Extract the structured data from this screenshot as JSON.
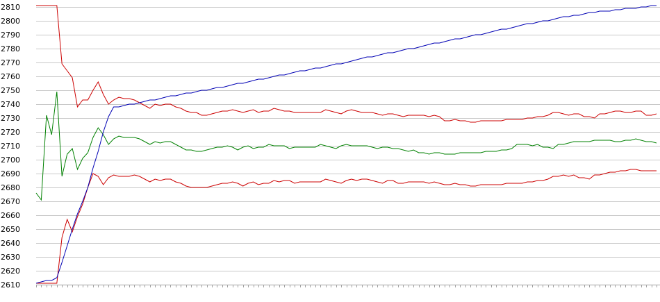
{
  "chart_data": {
    "type": "line",
    "title": "",
    "xlabel": "",
    "ylabel": "",
    "ylim": [
      2610,
      2810
    ],
    "yticks": [
      2610,
      2620,
      2630,
      2640,
      2650,
      2660,
      2670,
      2680,
      2690,
      2700,
      2710,
      2720,
      2730,
      2740,
      2750,
      2760,
      2770,
      2780,
      2790,
      2800,
      2810
    ],
    "grid": true,
    "legend": "none",
    "x_count": 121,
    "series": [
      {
        "color": "#cc0000",
        "values": [
          2811,
          2811,
          2811,
          2811,
          2811,
          2769,
          2764,
          2759,
          2738,
          2743,
          2743,
          2750,
          2756,
          2747,
          2740,
          2743,
          2745,
          2744,
          2744,
          2743,
          2741,
          2739,
          2737,
          2740,
          2739,
          2740,
          2740,
          2738,
          2737,
          2735,
          2734,
          2734,
          2732,
          2732,
          2733,
          2734,
          2735,
          2735,
          2736,
          2735,
          2734,
          2735,
          2736,
          2734,
          2735,
          2735,
          2737,
          2736,
          2735,
          2735,
          2734,
          2734,
          2734,
          2734,
          2734,
          2734,
          2736,
          2735,
          2734,
          2733,
          2735,
          2736,
          2735,
          2734,
          2734,
          2734,
          2733,
          2732,
          2733,
          2733,
          2732,
          2731,
          2732,
          2732,
          2732,
          2732,
          2731,
          2732,
          2731,
          2728,
          2728,
          2729,
          2728,
          2728,
          2727,
          2727,
          2728,
          2728,
          2728,
          2728,
          2728,
          2729,
          2729,
          2729,
          2729,
          2730,
          2730,
          2731,
          2731,
          2732,
          2734,
          2734,
          2733,
          2732,
          2733,
          2733,
          2731,
          2731,
          2730,
          2733,
          2733,
          2734,
          2735,
          2735,
          2734,
          2734,
          2735,
          2735,
          2732,
          2732,
          2733
        ]
      },
      {
        "color": "#008000",
        "values": [
          2676,
          2671,
          2732,
          2718,
          2749,
          2688,
          2704,
          2708,
          2693,
          2701,
          2705,
          2716,
          2723,
          2718,
          2711,
          2715,
          2717,
          2716,
          2716,
          2716,
          2715,
          2713,
          2711,
          2713,
          2712,
          2713,
          2713,
          2711,
          2709,
          2707,
          2707,
          2706,
          2706,
          2707,
          2708,
          2709,
          2709,
          2710,
          2709,
          2707,
          2709,
          2710,
          2708,
          2709,
          2709,
          2711,
          2710,
          2710,
          2710,
          2708,
          2709,
          2709,
          2709,
          2709,
          2709,
          2711,
          2710,
          2709,
          2708,
          2710,
          2711,
          2710,
          2710,
          2710,
          2710,
          2709,
          2708,
          2709,
          2709,
          2708,
          2708,
          2707,
          2706,
          2707,
          2705,
          2705,
          2704,
          2705,
          2705,
          2704,
          2704,
          2704,
          2705,
          2705,
          2705,
          2705,
          2705,
          2706,
          2706,
          2706,
          2707,
          2707,
          2708,
          2711,
          2711,
          2711,
          2710,
          2711,
          2709,
          2709,
          2708,
          2711,
          2711,
          2712,
          2713,
          2713,
          2713,
          2713,
          2714,
          2714,
          2714,
          2714,
          2713,
          2713,
          2714,
          2714,
          2715,
          2714,
          2713,
          2713,
          2712
        ]
      },
      {
        "color": "#cc0000",
        "values": [
          2611,
          2611,
          2611,
          2611,
          2611,
          2644,
          2657,
          2648,
          2659,
          2668,
          2680,
          2690,
          2688,
          2682,
          2687,
          2689,
          2688,
          2688,
          2688,
          2689,
          2688,
          2686,
          2684,
          2686,
          2685,
          2686,
          2686,
          2684,
          2683,
          2681,
          2680,
          2680,
          2680,
          2680,
          2681,
          2682,
          2683,
          2683,
          2684,
          2683,
          2681,
          2683,
          2684,
          2682,
          2683,
          2683,
          2685,
          2684,
          2685,
          2685,
          2683,
          2684,
          2684,
          2684,
          2684,
          2684,
          2686,
          2685,
          2684,
          2683,
          2685,
          2686,
          2685,
          2686,
          2686,
          2685,
          2684,
          2683,
          2685,
          2685,
          2683,
          2683,
          2684,
          2684,
          2684,
          2684,
          2683,
          2684,
          2683,
          2682,
          2682,
          2683,
          2682,
          2682,
          2681,
          2681,
          2682,
          2682,
          2682,
          2682,
          2682,
          2683,
          2683,
          2683,
          2683,
          2684,
          2684,
          2685,
          2685,
          2686,
          2688,
          2688,
          2689,
          2688,
          2689,
          2687,
          2687,
          2686,
          2689,
          2689,
          2690,
          2691,
          2691,
          2692,
          2692,
          2693,
          2693,
          2692,
          2692,
          2692,
          2692
        ]
      },
      {
        "color": "#0000b4",
        "values": [
          2611,
          2612,
          2613,
          2613,
          2615,
          2626,
          2638,
          2650,
          2661,
          2670,
          2680,
          2694,
          2706,
          2720,
          2731,
          2738,
          2738,
          2739,
          2740,
          2740,
          2741,
          2742,
          2743,
          2743,
          2744,
          2745,
          2746,
          2746,
          2747,
          2748,
          2748,
          2749,
          2750,
          2750,
          2751,
          2752,
          2752,
          2753,
          2754,
          2755,
          2755,
          2756,
          2757,
          2758,
          2758,
          2759,
          2760,
          2761,
          2761,
          2762,
          2763,
          2764,
          2764,
          2765,
          2766,
          2766,
          2767,
          2768,
          2769,
          2769,
          2770,
          2771,
          2772,
          2773,
          2774,
          2774,
          2775,
          2776,
          2777,
          2777,
          2778,
          2779,
          2780,
          2780,
          2781,
          2782,
          2783,
          2784,
          2784,
          2785,
          2786,
          2787,
          2787,
          2788,
          2789,
          2790,
          2790,
          2791,
          2792,
          2793,
          2794,
          2794,
          2795,
          2796,
          2797,
          2798,
          2798,
          2799,
          2800,
          2800,
          2801,
          2802,
          2803,
          2803,
          2804,
          2804,
          2805,
          2806,
          2806,
          2807,
          2807,
          2807,
          2808,
          2808,
          2809,
          2809,
          2809,
          2810,
          2810,
          2811,
          2811
        ]
      }
    ]
  }
}
